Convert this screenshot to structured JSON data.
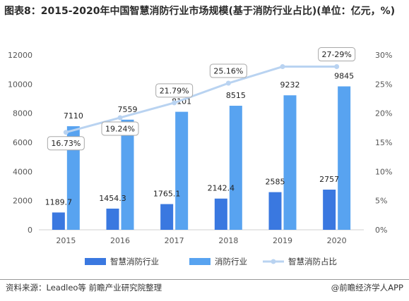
{
  "title": "图表8：2015-2020年中国智慧消防行业市场规模(基于消防行业占比)(单位：亿元，%)",
  "source": "资料来源：Leadleo等 前瞻产业研究院整理",
  "brand": "@前瞻经济学人APP",
  "colors": {
    "smart_bar": "#3a78e0",
    "fire_bar": "#58a3f0",
    "share_line": "#b9d3f1",
    "axis_text": "#555555"
  },
  "chart_data": {
    "type": "bar",
    "categories": [
      "2015",
      "2016",
      "2017",
      "2018",
      "2019",
      "2020"
    ],
    "series": [
      {
        "name": "智慧消防行业",
        "type": "bar",
        "axis": "left",
        "values": [
          1189.7,
          1454.3,
          1765.1,
          2142.4,
          2585,
          2757
        ],
        "labels": [
          "1189.7",
          "1454.3",
          "1765.1",
          "2142.4",
          "2585",
          "2757"
        ]
      },
      {
        "name": "消防行业",
        "type": "bar",
        "axis": "left",
        "values": [
          7110,
          7559,
          8101,
          8515,
          9232,
          9845
        ],
        "labels": [
          "7110",
          "7559",
          "8101",
          "8515",
          "9232",
          "9845"
        ]
      },
      {
        "name": "智慧消防占比",
        "type": "line",
        "axis": "right",
        "values": [
          16.73,
          19.24,
          21.79,
          25.16,
          28,
          28
        ],
        "labels": [
          "16.73%",
          "19.24%",
          "21.79%",
          "25.16%",
          "",
          "27-29%"
        ]
      }
    ],
    "ylim_left": [
      0,
      12000
    ],
    "yticks_left": [
      "0",
      "2000",
      "4000",
      "6000",
      "8000",
      "10000",
      "12000"
    ],
    "ylim_right": [
      0,
      30
    ],
    "yticks_right": [
      "0%",
      "5%",
      "10%",
      "15%",
      "20%",
      "25%",
      "30%"
    ],
    "legend_position": "bottom"
  }
}
